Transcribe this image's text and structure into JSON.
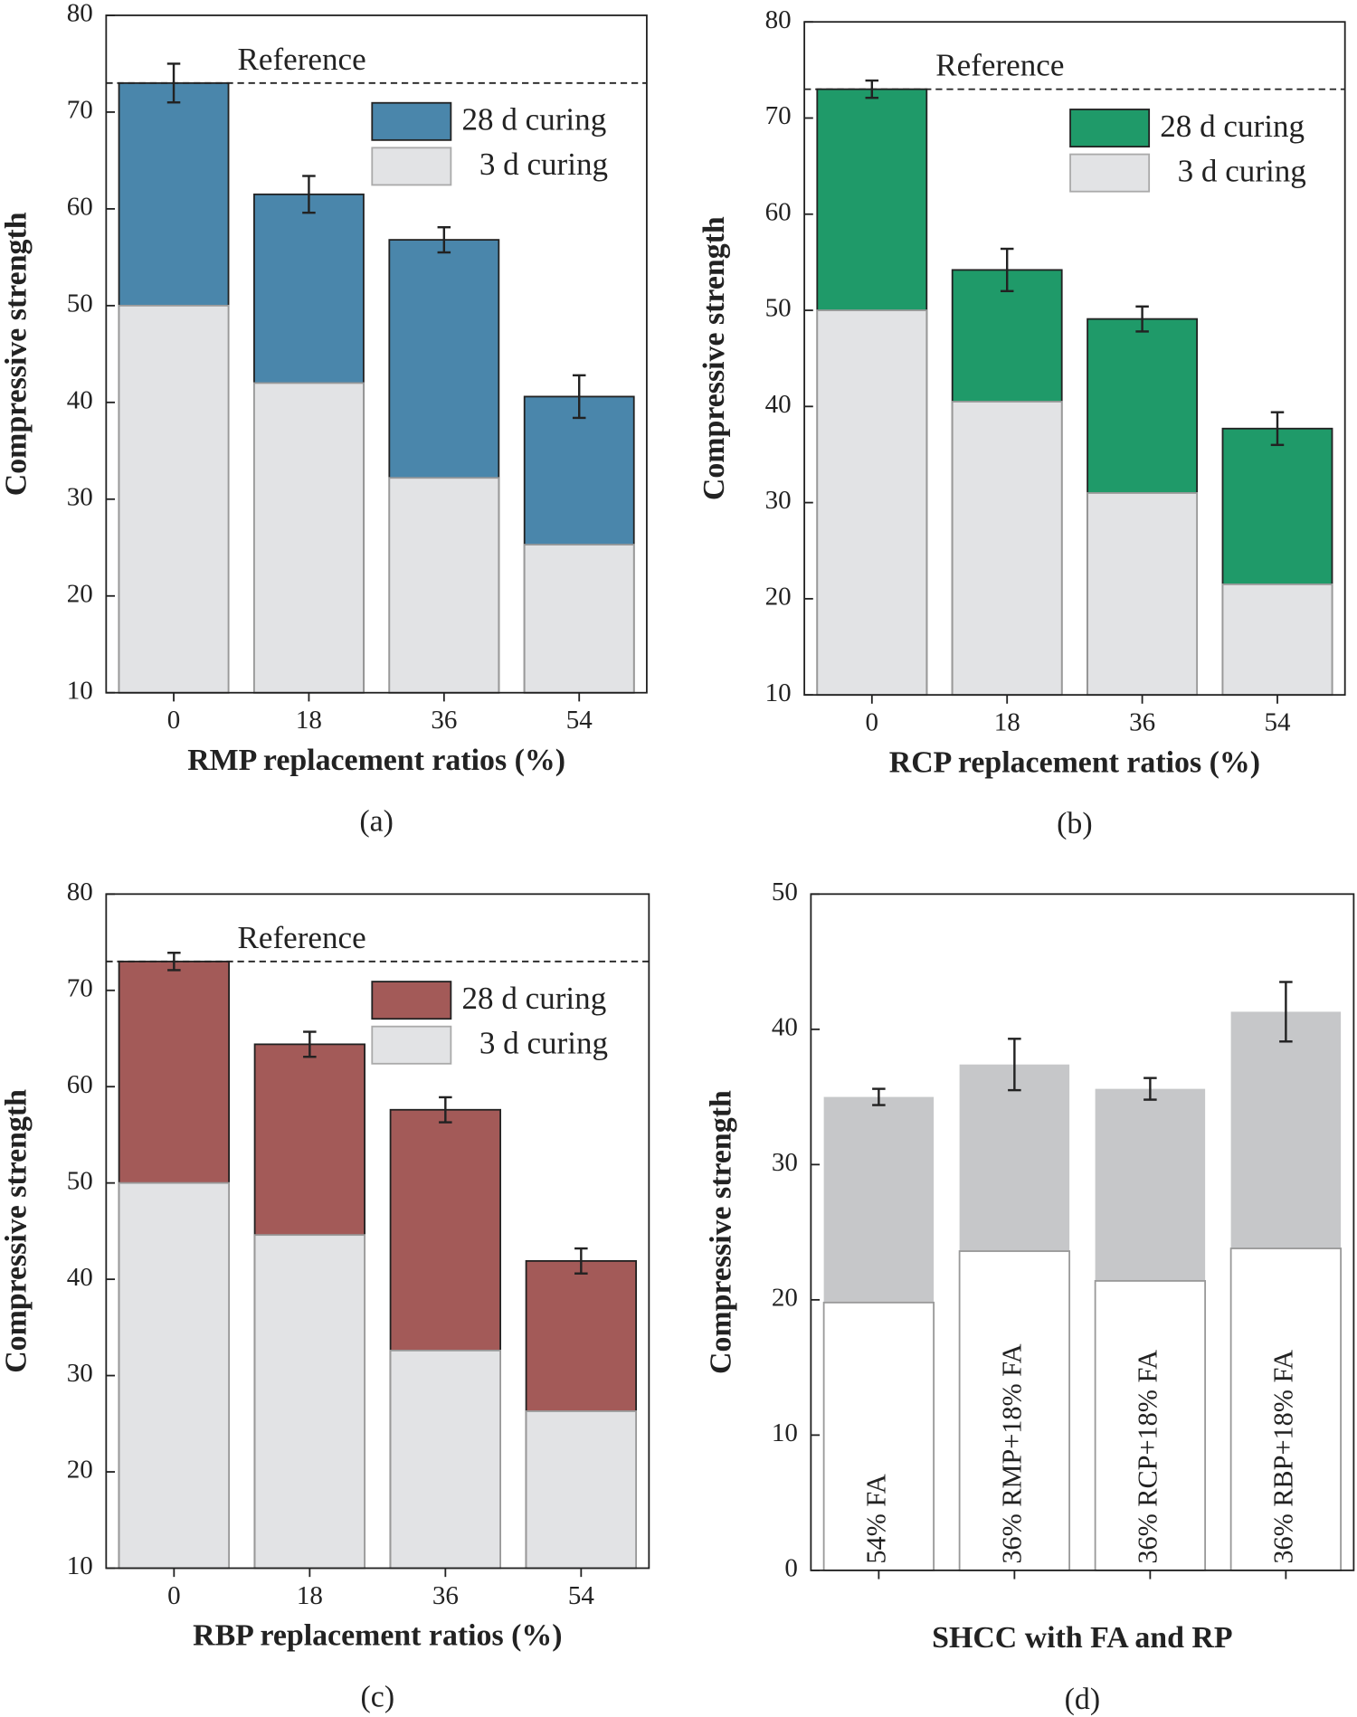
{
  "chart_data": [
    {
      "type": "bar",
      "caption": "(a)",
      "x_label": "RMP replacement ratios (%)",
      "y_label": "Compressive strength",
      "categories": [
        "0",
        "18",
        "36",
        "54"
      ],
      "series": [
        {
          "name": "28 d curing",
          "color": "#4a86ab",
          "edgecolor": "#222",
          "values": [
            73,
            61.5,
            56.8,
            40.6
          ],
          "errors": [
            2,
            1.9,
            1.3,
            2.2
          ]
        },
        {
          "name": "3 d curing",
          "color": "#e2e3e5",
          "edgecolor": "#999",
          "values": [
            50,
            42,
            32.2,
            25.3
          ]
        }
      ],
      "reference": {
        "label": "Reference",
        "value": 73
      },
      "ylim": [
        10,
        80
      ],
      "yticks": [
        10,
        20,
        30,
        40,
        50,
        60,
        70,
        80
      ]
    },
    {
      "type": "bar",
      "caption": "(b)",
      "x_label": "RCP replacement ratios (%)",
      "y_label": "Compressive strength",
      "categories": [
        "0",
        "18",
        "36",
        "54"
      ],
      "series": [
        {
          "name": "28 d curing",
          "color": "#1f9a69",
          "edgecolor": "#222",
          "values": [
            73,
            54.2,
            49.1,
            37.7
          ],
          "errors": [
            0.9,
            2.2,
            1.3,
            1.7
          ]
        },
        {
          "name": "3 d curing",
          "color": "#e2e3e5",
          "edgecolor": "#999",
          "values": [
            50,
            40.5,
            31,
            21.5
          ]
        }
      ],
      "reference": {
        "label": "Reference",
        "value": 73
      },
      "ylim": [
        10,
        80
      ],
      "yticks": [
        10,
        20,
        30,
        40,
        50,
        60,
        70,
        80
      ]
    },
    {
      "type": "bar",
      "caption": "(c)",
      "x_label": "RBP replacement ratios (%)",
      "y_label": "Compressive strength",
      "categories": [
        "0",
        "18",
        "36",
        "54"
      ],
      "series": [
        {
          "name": "28 d curing",
          "color": "#a35a58",
          "edgecolor": "#222",
          "values": [
            73,
            64.4,
            57.6,
            41.9
          ],
          "errors": [
            0.9,
            1.3,
            1.3,
            1.3
          ]
        },
        {
          "name": "3 d curing",
          "color": "#e2e3e5",
          "edgecolor": "#999",
          "values": [
            50,
            44.6,
            32.6,
            26.3
          ]
        }
      ],
      "reference": {
        "label": "Reference",
        "value": 73
      },
      "ylim": [
        10,
        80
      ],
      "yticks": [
        10,
        20,
        30,
        40,
        50,
        60,
        70,
        80
      ]
    },
    {
      "type": "bar",
      "caption": "(d)",
      "x_label": "SHCC with FA and RP",
      "y_label": "Compressive strength",
      "categories": [
        "54% FA",
        "36% RMP+18% FA",
        "36% RCP+18% FA",
        "36% RBP+18% FA"
      ],
      "category_labels_inside": true,
      "series": [
        {
          "color": "#c6c7c9",
          "edgecolor": "none",
          "values": [
            35,
            37.4,
            35.6,
            41.3
          ],
          "errors": [
            0.6,
            1.9,
            0.8,
            2.2
          ]
        },
        {
          "color": "#ffffff",
          "edgecolor": "#999",
          "values": [
            19.8,
            23.6,
            21.4,
            23.8
          ]
        }
      ],
      "ylim": [
        0,
        50
      ],
      "yticks": [
        0,
        10,
        20,
        30,
        40,
        50
      ]
    }
  ]
}
